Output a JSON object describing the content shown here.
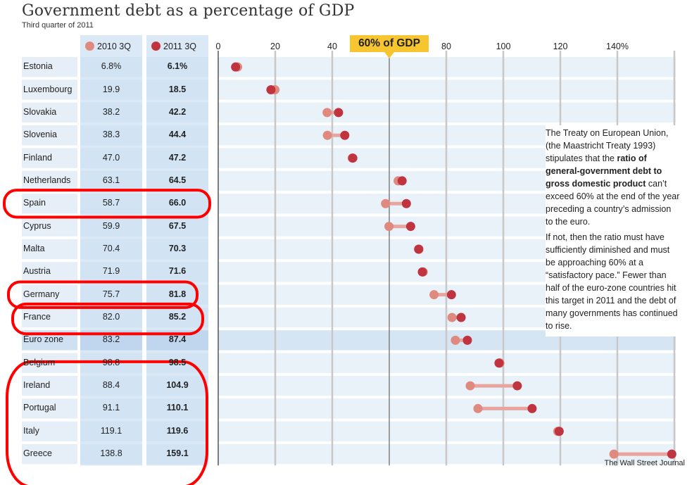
{
  "chart_data": {
    "type": "dumbbell",
    "title": "Government debt as a percentage of GDP",
    "subtitle": "Third quarter of 2011",
    "series": [
      {
        "name": "2010 3Q",
        "color": "#e0897e"
      },
      {
        "name": "2011 3Q",
        "color": "#c0343f"
      }
    ],
    "x_ticks": [
      "0",
      "20",
      "40",
      "80",
      "100",
      "120",
      "140%"
    ],
    "x_tick_values": [
      0,
      20,
      40,
      80,
      100,
      120,
      140
    ],
    "xlim": [
      0,
      160
    ],
    "reference_line": {
      "value": 60,
      "label": "60% of GDP",
      "color": "#f6c530"
    },
    "rows": [
      {
        "country": "Estonia",
        "v2010": 6.8,
        "v2011": 6.1,
        "v2010_label": "6.8%",
        "v2011_label": "6.1%"
      },
      {
        "country": "Luxembourg",
        "v2010": 19.9,
        "v2011": 18.5,
        "v2010_label": "19.9",
        "v2011_label": "18.5"
      },
      {
        "country": "Slovakia",
        "v2010": 38.2,
        "v2011": 42.2,
        "v2010_label": "38.2",
        "v2011_label": "42.2"
      },
      {
        "country": "Slovenia",
        "v2010": 38.3,
        "v2011": 44.4,
        "v2010_label": "38.3",
        "v2011_label": "44.4"
      },
      {
        "country": "Finland",
        "v2010": 47.0,
        "v2011": 47.2,
        "v2010_label": "47.0",
        "v2011_label": "47.2"
      },
      {
        "country": "Netherlands",
        "v2010": 63.1,
        "v2011": 64.5,
        "v2010_label": "63.1",
        "v2011_label": "64.5"
      },
      {
        "country": "Spain",
        "v2010": 58.7,
        "v2011": 66.0,
        "v2010_label": "58.7",
        "v2011_label": "66.0"
      },
      {
        "country": "Cyprus",
        "v2010": 59.9,
        "v2011": 67.5,
        "v2010_label": "59.9",
        "v2011_label": "67.5"
      },
      {
        "country": "Malta",
        "v2010": 70.4,
        "v2011": 70.3,
        "v2010_label": "70.4",
        "v2011_label": "70.3"
      },
      {
        "country": "Austria",
        "v2010": 71.9,
        "v2011": 71.6,
        "v2010_label": "71.9",
        "v2011_label": "71.6"
      },
      {
        "country": "Germany",
        "v2010": 75.7,
        "v2011": 81.8,
        "v2010_label": "75.7",
        "v2011_label": "81.8"
      },
      {
        "country": "France",
        "v2010": 82.0,
        "v2011": 85.2,
        "v2010_label": "82.0",
        "v2011_label": "85.2"
      },
      {
        "country": "Euro zone",
        "v2010": 83.2,
        "v2011": 87.4,
        "v2010_label": "83.2",
        "v2011_label": "87.4"
      },
      {
        "country": "Belgium",
        "v2010": 98.8,
        "v2011": 98.5,
        "v2010_label": "98.8",
        "v2011_label": "98.5"
      },
      {
        "country": "Ireland",
        "v2010": 88.4,
        "v2011": 104.9,
        "v2010_label": "88.4",
        "v2011_label": "104.9"
      },
      {
        "country": "Portugal",
        "v2010": 91.1,
        "v2011": 110.1,
        "v2010_label": "91.1",
        "v2011_label": "110.1"
      },
      {
        "country": "Italy",
        "v2010": 119.1,
        "v2011": 119.6,
        "v2010_label": "119.1",
        "v2011_label": "119.6"
      },
      {
        "country": "Greece",
        "v2010": 138.8,
        "v2011": 159.1,
        "v2010_label": "138.8",
        "v2011_label": "159.1"
      }
    ],
    "highlighted_rows": [
      "Spain",
      "Germany",
      "France",
      "Ireland",
      "Portugal",
      "Italy",
      "Greece"
    ],
    "highlight_color": "#ff0000"
  },
  "note": {
    "p1_before": "The Treaty on European Union, (the Maastricht Treaty 1993) stipulates that the ",
    "p1_bold": "ratio of general-government debt to gross domestic product",
    "p1_after": " can’t exceed 60% at the end of the year preceding a country’s admission to the euro.",
    "p2": "If not, then the ratio must have sufficiently diminished and must be approaching 60% at a “satisfactory pace.” Fewer than half of the euro-zone countries hit this target in 2011 and the debt of many governments has continued to rise."
  },
  "credit": "The Wall Street Journal"
}
